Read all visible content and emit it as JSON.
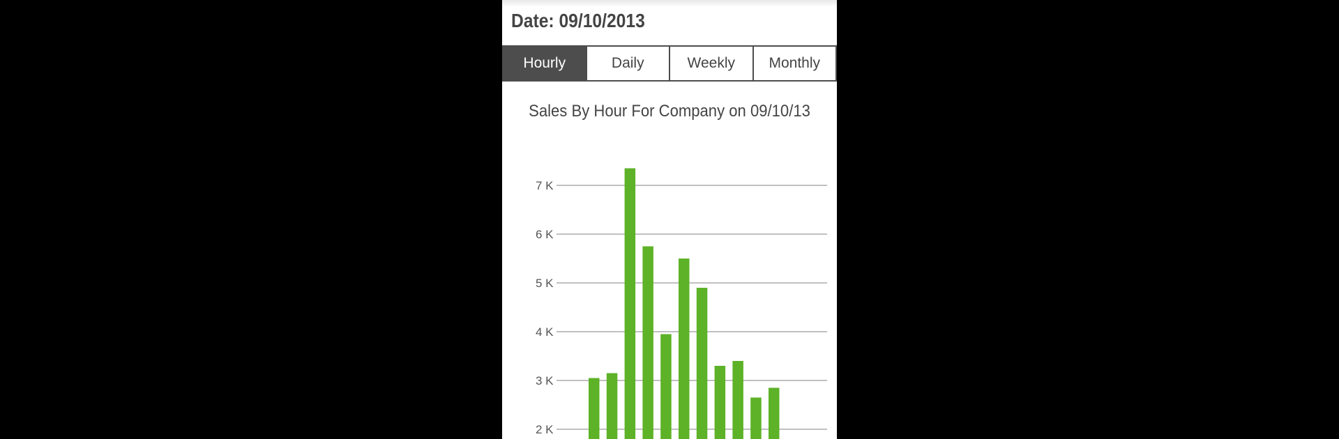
{
  "header": {
    "date_label": "Date: 09/10/2013"
  },
  "tabs": [
    {
      "label": "Hourly",
      "active": true
    },
    {
      "label": "Daily",
      "active": false
    },
    {
      "label": "Weekly",
      "active": false
    },
    {
      "label": "Monthly",
      "active": false
    }
  ],
  "colors": {
    "bar": "#5db228",
    "active_tab": "#4d4d4d",
    "grid": "#9a9a9a",
    "text": "#444444"
  },
  "chart_data": {
    "type": "bar",
    "title": "Sales By Hour For Company on 09/10/13",
    "xlabel": "",
    "ylabel": "",
    "y_ticks": [
      "7 K",
      "6 K",
      "5 K",
      "4 K",
      "3 K",
      "2 K"
    ],
    "values": [
      3050,
      3150,
      7350,
      5750,
      3950,
      5500,
      4900,
      3300,
      3400,
      2650,
      2850
    ],
    "ylim": [
      2000,
      7000
    ],
    "grid": true
  }
}
